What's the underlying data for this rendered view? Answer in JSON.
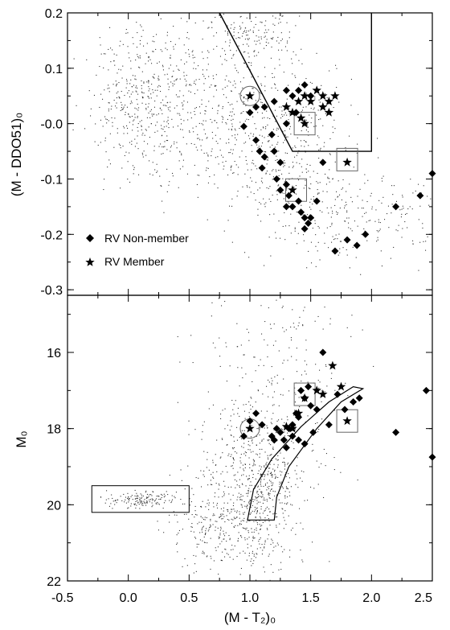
{
  "chart_data": [
    {
      "type": "scatter",
      "panel": "top",
      "xlim": [
        -0.5,
        2.5
      ],
      "ylim": [
        -0.31,
        0.2
      ],
      "ylabel": "(M - DDO51)₀",
      "y_ticks": [
        "0.2",
        "0.1",
        "-0.0",
        "-0.1",
        "-0.2",
        "-0.3"
      ],
      "y_tick_values": [
        0.2,
        0.1,
        0.0,
        -0.1,
        -0.2,
        -0.3
      ],
      "legend": [
        {
          "symbol": "diamond",
          "label": "RV Non-member"
        },
        {
          "symbol": "star",
          "label": "RV Member"
        }
      ],
      "legend_position": "bottom-left",
      "selection_polygon": [
        [
          0.75,
          0.2
        ],
        [
          1.35,
          -0.05
        ],
        [
          2.0,
          -0.05
        ],
        [
          2.0,
          0.2
        ]
      ],
      "non_members": [
        [
          0.95,
          -0.005
        ],
        [
          1.0,
          0.02
        ],
        [
          1.05,
          0.03
        ],
        [
          1.12,
          0.03
        ],
        [
          1.2,
          0.04
        ],
        [
          1.18,
          -0.02
        ],
        [
          1.05,
          -0.03
        ],
        [
          1.08,
          -0.05
        ],
        [
          1.12,
          -0.06
        ],
        [
          1.1,
          -0.08
        ],
        [
          1.2,
          -0.05
        ],
        [
          1.25,
          -0.07
        ],
        [
          1.22,
          -0.1
        ],
        [
          1.3,
          -0.11
        ],
        [
          1.32,
          -0.13
        ],
        [
          1.25,
          -0.12
        ],
        [
          1.3,
          -0.15
        ],
        [
          1.35,
          -0.15
        ],
        [
          1.4,
          -0.14
        ],
        [
          1.42,
          -0.16
        ],
        [
          1.45,
          -0.17
        ],
        [
          1.48,
          -0.18
        ],
        [
          1.45,
          -0.19
        ],
        [
          1.5,
          -0.17
        ],
        [
          1.55,
          -0.14
        ],
        [
          1.6,
          -0.07
        ],
        [
          1.7,
          -0.23
        ],
        [
          1.8,
          -0.21
        ],
        [
          1.88,
          -0.22
        ],
        [
          1.95,
          -0.2
        ],
        [
          2.2,
          -0.15
        ],
        [
          2.4,
          -0.13
        ],
        [
          2.5,
          -0.09
        ],
        [
          1.35,
          0.05
        ],
        [
          1.4,
          0.06
        ],
        [
          1.45,
          0.07
        ],
        [
          1.3,
          0.06
        ],
        [
          1.38,
          0.02
        ],
        [
          1.3,
          0.0
        ],
        [
          1.5,
          0.05
        ]
      ],
      "members": [
        [
          1.0,
          0.05
        ],
        [
          1.3,
          0.03
        ],
        [
          1.35,
          0.02
        ],
        [
          1.4,
          0.04
        ],
        [
          1.45,
          0.05
        ],
        [
          1.5,
          0.04
        ],
        [
          1.55,
          0.06
        ],
        [
          1.6,
          0.05
        ],
        [
          1.6,
          0.03
        ],
        [
          1.65,
          0.04
        ],
        [
          1.65,
          0.02
        ],
        [
          1.7,
          0.05
        ],
        [
          1.45,
          0.0
        ],
        [
          1.42,
          0.01
        ],
        [
          1.8,
          -0.07
        ],
        [
          1.35,
          -0.12
        ]
      ],
      "boxes": [
        [
          1.45,
          0.0
        ],
        [
          1.8,
          -0.065
        ],
        [
          1.38,
          -0.12
        ]
      ],
      "circle": [
        1.0,
        0.05
      ]
    },
    {
      "type": "scatter",
      "panel": "bottom",
      "xlim": [
        -0.5,
        2.5
      ],
      "ylim": [
        22,
        14.5
      ],
      "xlabel": "(M - T₂)₀",
      "ylabel": "M₀",
      "x_ticks": [
        "-0.5",
        "0.0",
        "0.5",
        "1.0",
        "1.5",
        "2.0",
        "2.5"
      ],
      "x_tick_values": [
        -0.5,
        0.0,
        0.5,
        1.0,
        1.5,
        2.0,
        2.5
      ],
      "y_ticks": [
        "16",
        "18",
        "20",
        "22"
      ],
      "y_tick_values": [
        16,
        18,
        20,
        22
      ],
      "bhb_box": [
        [
          -0.3,
          19.5
        ],
        [
          0.5,
          20.2
        ]
      ],
      "rgb_polygon": [
        [
          0.98,
          20.4
        ],
        [
          1.2,
          20.4
        ],
        [
          1.22,
          19.8
        ],
        [
          1.32,
          19.0
        ],
        [
          1.55,
          18.0
        ],
        [
          1.75,
          17.3
        ],
        [
          1.93,
          16.95
        ],
        [
          1.85,
          16.9
        ],
        [
          1.65,
          17.3
        ],
        [
          1.42,
          17.95
        ],
        [
          1.18,
          18.8
        ],
        [
          1.03,
          19.6
        ]
      ],
      "non_members": [
        [
          0.95,
          18.2
        ],
        [
          1.0,
          17.8
        ],
        [
          1.05,
          17.6
        ],
        [
          1.1,
          17.9
        ],
        [
          1.25,
          18.1
        ],
        [
          1.28,
          18.3
        ],
        [
          1.32,
          18.0
        ],
        [
          1.35,
          17.9
        ],
        [
          1.38,
          17.6
        ],
        [
          1.4,
          17.7
        ],
        [
          1.42,
          17.0
        ],
        [
          1.45,
          17.2
        ],
        [
          1.48,
          16.9
        ],
        [
          1.5,
          17.4
        ],
        [
          1.55,
          17.5
        ],
        [
          1.6,
          16.0
        ],
        [
          1.65,
          17.9
        ],
        [
          1.72,
          17.1
        ],
        [
          1.78,
          17.5
        ],
        [
          1.85,
          17.3
        ],
        [
          1.9,
          17.2
        ],
        [
          2.2,
          18.1
        ],
        [
          2.45,
          17.0
        ],
        [
          2.5,
          18.75
        ],
        [
          1.3,
          18.5
        ],
        [
          1.4,
          18.3
        ],
        [
          1.35,
          18.2
        ],
        [
          1.52,
          18.1
        ],
        [
          1.45,
          18.4
        ],
        [
          1.18,
          18.2
        ],
        [
          1.2,
          18.3
        ],
        [
          1.22,
          18.0
        ]
      ],
      "members": [
        [
          1.0,
          18.0
        ],
        [
          1.45,
          17.2
        ],
        [
          1.55,
          17.0
        ],
        [
          1.6,
          17.1
        ],
        [
          1.68,
          16.35
        ],
        [
          1.75,
          16.9
        ],
        [
          1.8,
          17.8
        ],
        [
          1.4,
          17.6
        ],
        [
          1.3,
          17.95
        ],
        [
          1.35,
          18.0
        ]
      ],
      "boxes": [
        [
          1.45,
          17.1
        ],
        [
          1.8,
          17.8
        ]
      ],
      "circle": [
        1.0,
        18.0
      ]
    }
  ]
}
